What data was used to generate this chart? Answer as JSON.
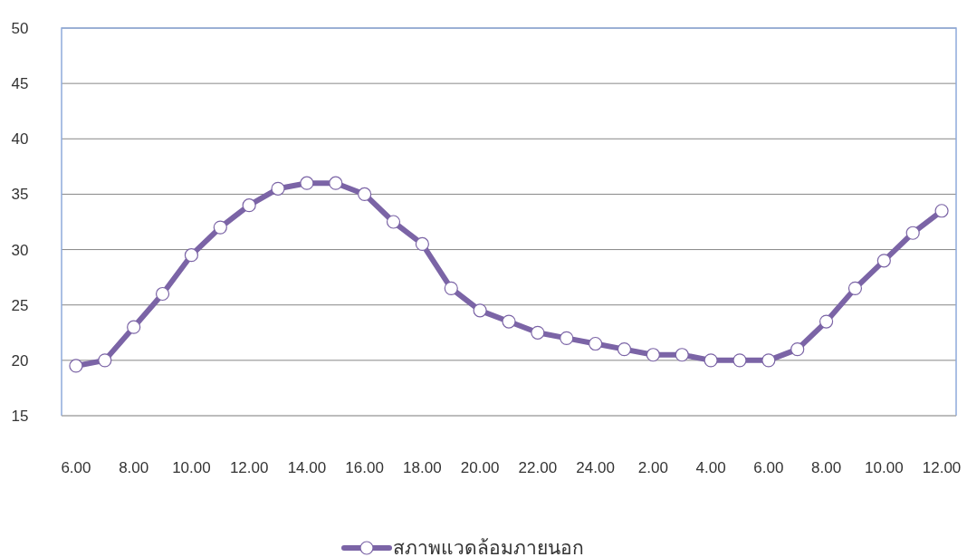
{
  "chart_data": {
    "type": "line",
    "categories": [
      "6.00",
      null,
      "8.00",
      null,
      "10.00",
      null,
      "12.00",
      null,
      "14.00",
      null,
      "16.00",
      null,
      "18.00",
      null,
      "20.00",
      null,
      "22.00",
      null,
      "24.00",
      null,
      "2.00",
      null,
      "4.00",
      null,
      "6.00",
      null,
      "8.00",
      null,
      "10.00",
      null,
      "12.00"
    ],
    "series": [
      {
        "name": "สภาพแวดล้อมภายนอก",
        "color": "#7b64a6",
        "values": [
          19.5,
          20,
          23,
          26,
          29.5,
          32,
          34,
          35.5,
          36,
          36,
          35,
          32.5,
          30.5,
          26.5,
          24.5,
          23.5,
          22.5,
          22,
          21.5,
          21,
          20.5,
          20.5,
          20,
          20,
          20,
          21,
          23.5,
          26.5,
          29,
          31.5,
          33.5
        ]
      }
    ],
    "ylim": [
      15,
      50
    ],
    "yticks": [
      15,
      20,
      25,
      30,
      35,
      40,
      45,
      50
    ],
    "grid": "y",
    "legend": "bottom",
    "marker": "circle",
    "line_style": "solid"
  }
}
